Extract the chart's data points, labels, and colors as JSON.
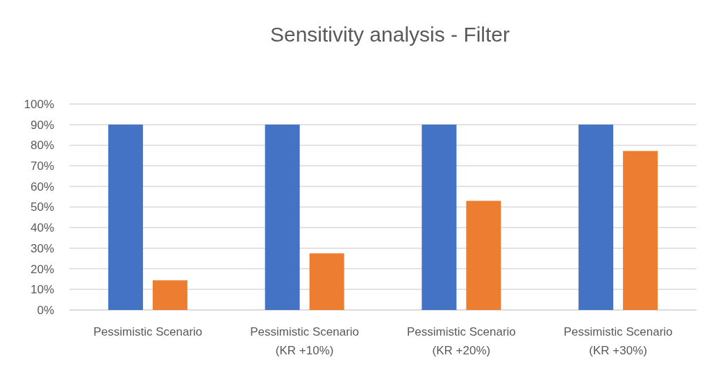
{
  "chart_data": {
    "type": "bar",
    "title": "Sensitivity analysis - Filter",
    "categories": [
      "Pessimistic Scenario",
      "Pessimistic Scenario\n(KR +10%)",
      "Pessimistic Scenario\n(KR +20%)",
      "Pessimistic Scenario\n(KR +30%)"
    ],
    "series": [
      {
        "color": "#4472c4",
        "values": [
          90,
          90,
          90,
          90
        ]
      },
      {
        "color": "#ed7d31",
        "values": [
          14.4,
          27.5,
          53,
          77.2
        ]
      }
    ],
    "ylim": [
      0,
      100
    ],
    "yticks": [
      {
        "value": 0,
        "label": "0%"
      },
      {
        "value": 10,
        "label": "10%"
      },
      {
        "value": 20,
        "label": "20%"
      },
      {
        "value": 30,
        "label": "30%"
      },
      {
        "value": 40,
        "label": "40%"
      },
      {
        "value": 50,
        "label": "50%"
      },
      {
        "value": 60,
        "label": "60%"
      },
      {
        "value": 70,
        "label": "70%"
      },
      {
        "value": 80,
        "label": "80%"
      },
      {
        "value": 90,
        "label": "90%"
      },
      {
        "value": 100,
        "label": "100%"
      }
    ],
    "grid": "y"
  }
}
